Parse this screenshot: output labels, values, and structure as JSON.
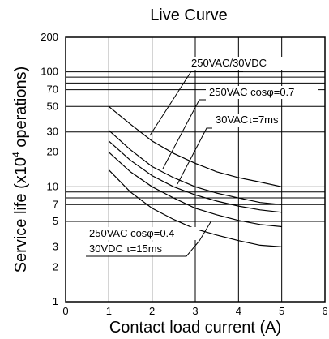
{
  "chart_data": {
    "type": "line",
    "title": "Live Curve",
    "xlabel": "Contact load current (A)",
    "ylabel_main": "Service life (x10",
    "ylabel_sup": "4",
    "ylabel_tail": " operations)",
    "xlim": [
      0,
      6
    ],
    "ylim": [
      1,
      200
    ],
    "yscale": "log",
    "grid": "horizontal",
    "x_ticks": [
      "0",
      "1",
      "2",
      "3",
      "4",
      "5",
      "6"
    ],
    "y_ticks": [
      {
        "value": 1,
        "label": "1"
      },
      {
        "value": 2,
        "label": "2"
      },
      {
        "value": 3,
        "label": "3"
      },
      {
        "value": 5,
        "label": "5"
      },
      {
        "value": 7,
        "label": "7"
      },
      {
        "value": 10,
        "label": "10"
      },
      {
        "value": 20,
        "label": "20"
      },
      {
        "value": 30,
        "label": "30"
      },
      {
        "value": 50,
        "label": "50"
      },
      {
        "value": 70,
        "label": "70"
      },
      {
        "value": 100,
        "label": "100"
      },
      {
        "value": 200,
        "label": "200"
      }
    ],
    "series": [
      {
        "x": [
          1,
          1.5,
          2,
          2.5,
          3,
          3.5,
          4,
          4.5,
          5
        ],
        "y": [
          50,
          35,
          25,
          19.5,
          16,
          13.5,
          12,
          11,
          10
        ]
      },
      {
        "x": [
          1,
          1.5,
          2,
          2.5,
          3,
          3.5,
          4,
          4.5,
          5
        ],
        "y": [
          31,
          21,
          15,
          12,
          10,
          8.8,
          8,
          7.3,
          7
        ]
      },
      {
        "x": [
          1,
          1.5,
          2,
          2.5,
          3,
          3.5,
          4,
          4.5,
          5
        ],
        "y": [
          25,
          17,
          12.5,
          10,
          8.5,
          7.5,
          6.8,
          6.3,
          6
        ]
      },
      {
        "x": [
          1,
          1.5,
          2,
          2.5,
          3,
          3.5,
          4,
          4.5,
          5
        ],
        "y": [
          20,
          13.5,
          10,
          8,
          6.5,
          5.7,
          5.1,
          4.7,
          4.5
        ]
      },
      {
        "x": [
          1,
          1.5,
          2,
          2.5,
          3,
          3.5,
          4,
          4.5,
          5
        ],
        "y": [
          14,
          9,
          6.5,
          5.2,
          4.3,
          3.8,
          3.4,
          3.1,
          3
        ]
      }
    ],
    "annotations": [
      {
        "text": "250VAC/30VDC"
      },
      {
        "text": "250VAC cosφ=0.7"
      },
      {
        "text": "30VACτ=7ms"
      },
      {
        "text": "250VAC cosφ=0.4"
      },
      {
        "text": "30VDC τ=15ms"
      }
    ]
  }
}
